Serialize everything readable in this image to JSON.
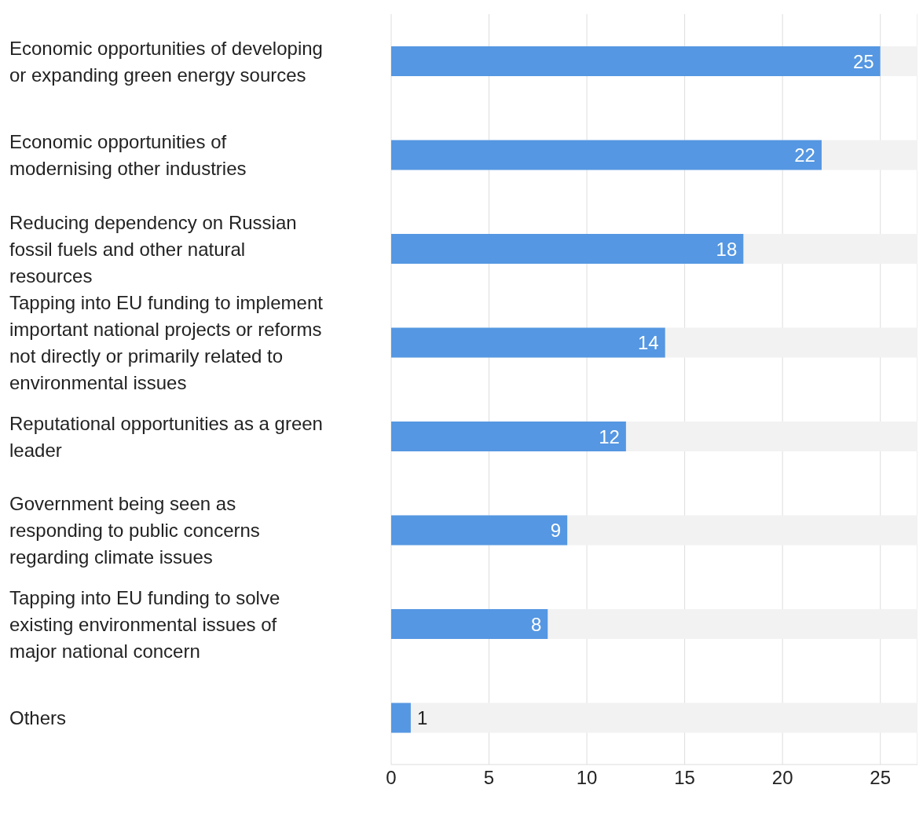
{
  "chart_data": {
    "type": "bar",
    "orientation": "horizontal",
    "categories": [
      "Economic opportunities of developing or expanding green energy sources",
      "Economic opportunities of modernising other industries",
      "Reducing dependency on Russian fossil fuels and other natural resources",
      "Tapping into EU funding to implement important national projects or reforms not directly or primarily related to environmental issues",
      "Reputational opportunities as a green leader",
      "Government being seen as responding to public concerns regarding climate issues",
      "Tapping into EU funding to solve existing environmental issues of major national concern",
      "Others"
    ],
    "values": [
      25,
      22,
      18,
      14,
      12,
      9,
      8,
      1
    ],
    "color": "#5597e2",
    "xlim": [
      0,
      26.9
    ],
    "xticks": [
      0,
      5,
      10,
      15,
      20,
      25
    ],
    "grid": "x",
    "data_labels": true
  }
}
